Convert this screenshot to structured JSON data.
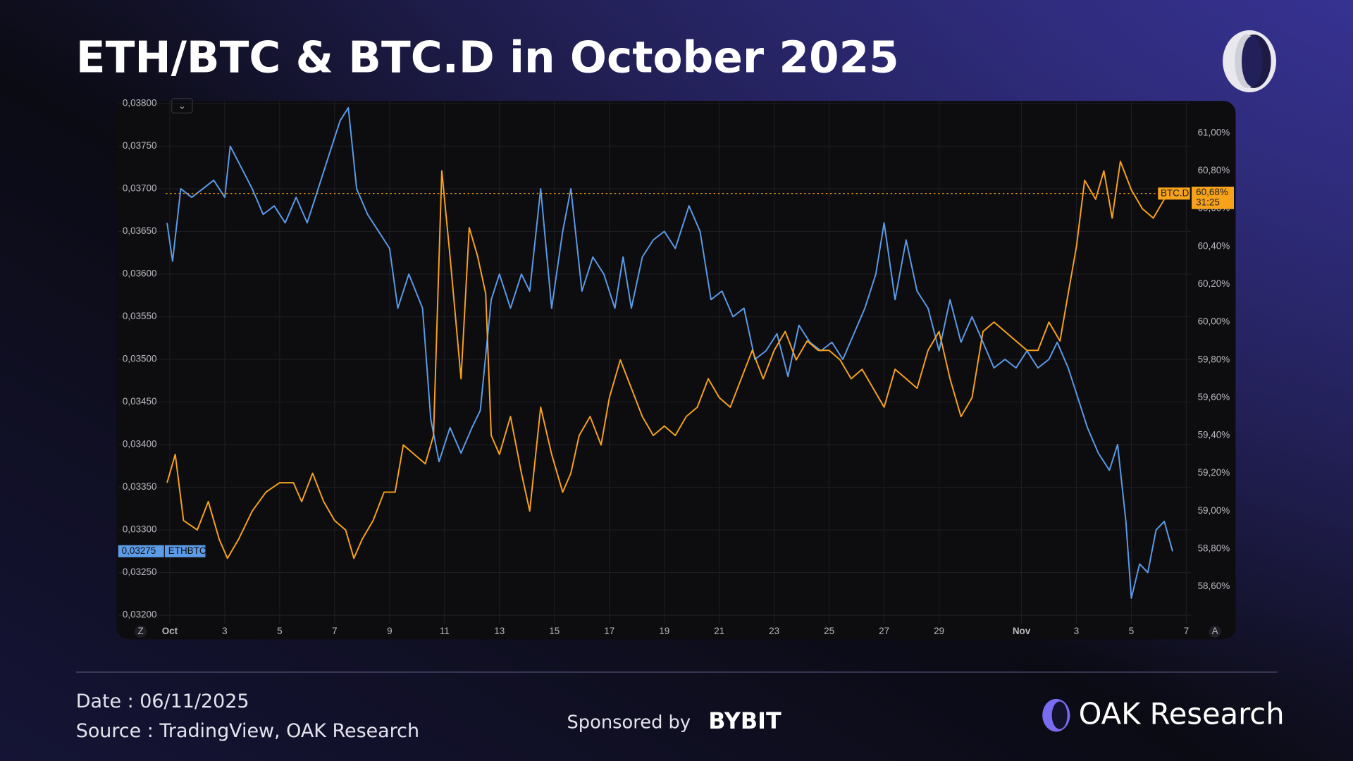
{
  "chart_data": {
    "type": "line",
    "title": "ETH/BTC & BTC.D in October 2025",
    "xlim": [
      0.85,
      38.1
    ],
    "xticks": [
      {
        "value": 1,
        "label": "Oct"
      },
      3,
      5,
      7,
      9,
      11,
      13,
      15,
      17,
      19,
      21,
      23,
      25,
      27,
      29,
      {
        "value": 32,
        "label": "Nov"
      },
      {
        "value": 34,
        "label": "3"
      },
      {
        "value": 36,
        "label": "5"
      },
      {
        "value": 38,
        "label": "7"
      }
    ],
    "ylim": [
      0.03198,
      0.03803
    ],
    "yticks": [
      {
        "value": 0.032,
        "label": "0,03200"
      },
      {
        "value": 0.0325,
        "label": "0,03250"
      },
      {
        "value": 0.033,
        "label": "0,03300"
      },
      {
        "value": 0.0335,
        "label": "0,03350"
      },
      {
        "value": 0.034,
        "label": "0,03400"
      },
      {
        "value": 0.0345,
        "label": "0,03450"
      },
      {
        "value": 0.035,
        "label": "0,03500"
      },
      {
        "value": 0.0355,
        "label": "0,03550"
      },
      {
        "value": 0.036,
        "label": "0,03600"
      },
      {
        "value": 0.0365,
        "label": "0,03650"
      },
      {
        "value": 0.037,
        "label": "0,03700"
      },
      {
        "value": 0.0375,
        "label": "0,03750"
      },
      {
        "value": 0.038,
        "label": "0,03800"
      }
    ],
    "y2lim": [
      58.44,
      61.17
    ],
    "y2ticks": [
      {
        "value": 58.6,
        "label": "58,60%"
      },
      {
        "value": 58.8,
        "label": "58,80%"
      },
      {
        "value": 59,
        "label": "59,00%"
      },
      {
        "value": 59.2,
        "label": "59,20%"
      },
      {
        "value": 59.4,
        "label": "59,40%"
      },
      {
        "value": 59.6,
        "label": "59,60%"
      },
      {
        "value": 59.8,
        "label": "59,80%"
      },
      {
        "value": 60,
        "label": "60,00%"
      },
      {
        "value": 60.2,
        "label": "60,20%"
      },
      {
        "value": 60.4,
        "label": "60,40%"
      },
      {
        "value": 60.6,
        "label": "60,60%"
      },
      {
        "value": 60.8,
        "label": "60,80%"
      },
      {
        "value": 61,
        "label": "61,00%"
      }
    ],
    "grid": true,
    "series": [
      {
        "name": "ETHBTC",
        "color": "#5b9be8",
        "axis": "y",
        "x": [
          0.9,
          1.1,
          1.4,
          1.8,
          2.2,
          2.6,
          3.0,
          3.2,
          3.6,
          4.0,
          4.4,
          4.8,
          5.2,
          5.6,
          6.0,
          6.4,
          6.8,
          7.2,
          7.5,
          7.8,
          8.2,
          8.6,
          9.0,
          9.3,
          9.7,
          10.2,
          10.5,
          10.8,
          11.2,
          11.6,
          12.0,
          12.3,
          12.7,
          13.0,
          13.4,
          13.8,
          14.1,
          14.5,
          14.9,
          15.3,
          15.6,
          16.0,
          16.4,
          16.8,
          17.2,
          17.5,
          17.8,
          18.2,
          18.6,
          19.0,
          19.4,
          19.9,
          20.3,
          20.7,
          21.1,
          21.5,
          21.9,
          22.3,
          22.7,
          23.1,
          23.5,
          23.9,
          24.3,
          24.7,
          25.1,
          25.5,
          25.9,
          26.3,
          26.7,
          27.0,
          27.4,
          27.8,
          28.2,
          28.6,
          29.0,
          29.4,
          29.8,
          30.2,
          30.6,
          31.0,
          31.4,
          31.8,
          32.2,
          32.6,
          33.0,
          33.3,
          33.7,
          34.0,
          34.4,
          34.8,
          35.2,
          35.5,
          35.8,
          36.0,
          36.3,
          36.6,
          36.9,
          37.2,
          37.5
        ],
        "values": [
          0.0366,
          0.03615,
          0.037,
          0.0369,
          0.037,
          0.0371,
          0.0369,
          0.0375,
          0.03725,
          0.037,
          0.0367,
          0.0368,
          0.0366,
          0.0369,
          0.0366,
          0.037,
          0.0374,
          0.0378,
          0.03795,
          0.037,
          0.0367,
          0.0365,
          0.0363,
          0.0356,
          0.036,
          0.0356,
          0.0343,
          0.0338,
          0.0342,
          0.0339,
          0.0342,
          0.0344,
          0.0357,
          0.036,
          0.0356,
          0.036,
          0.0358,
          0.037,
          0.0356,
          0.0365,
          0.037,
          0.0358,
          0.0362,
          0.036,
          0.0356,
          0.0362,
          0.0356,
          0.0362,
          0.0364,
          0.0365,
          0.0363,
          0.0368,
          0.0365,
          0.0357,
          0.0358,
          0.0355,
          0.0356,
          0.035,
          0.0351,
          0.0353,
          0.0348,
          0.0354,
          0.0352,
          0.0351,
          0.0352,
          0.035,
          0.0353,
          0.0356,
          0.036,
          0.0366,
          0.0357,
          0.0364,
          0.0358,
          0.0356,
          0.0351,
          0.0357,
          0.0352,
          0.0355,
          0.0352,
          0.0349,
          0.035,
          0.0349,
          0.0351,
          0.0349,
          0.035,
          0.0352,
          0.0349,
          0.0346,
          0.0342,
          0.0339,
          0.0337,
          0.034,
          0.0331,
          0.0322,
          0.0326,
          0.0325,
          0.033,
          0.0331,
          0.03275
        ],
        "value_labels": [
          null,
          null,
          null,
          null,
          null,
          null,
          null,
          null,
          null,
          null,
          null,
          null,
          null,
          null,
          null,
          null,
          null,
          null,
          null,
          null,
          null,
          null,
          null,
          null,
          null,
          null,
          null,
          null,
          null,
          null,
          null,
          null,
          null,
          null,
          null,
          null,
          null,
          null,
          null,
          null,
          null,
          null,
          null,
          null,
          null,
          null,
          null,
          null,
          null,
          null,
          null,
          null,
          null,
          null,
          null,
          null,
          null,
          null,
          null,
          null,
          null,
          null,
          null,
          null,
          null,
          null,
          null,
          null,
          null,
          null,
          null,
          null,
          null,
          null,
          null,
          null,
          null,
          null,
          null,
          null,
          null,
          null,
          null,
          null,
          null,
          null,
          null,
          null,
          null,
          null,
          null,
          null,
          null,
          null,
          null,
          null,
          null,
          null,
          "0,03275"
        ]
      },
      {
        "name": "BTC.D",
        "color": "#f7a21b",
        "axis": "y2",
        "countdown": "31:25",
        "x": [
          0.9,
          1.2,
          1.5,
          2.0,
          2.4,
          2.8,
          3.1,
          3.5,
          4.0,
          4.5,
          5.0,
          5.5,
          5.8,
          6.2,
          6.6,
          7.0,
          7.4,
          7.7,
          8.0,
          8.4,
          8.8,
          9.2,
          9.5,
          9.9,
          10.3,
          10.6,
          10.9,
          11.2,
          11.6,
          11.9,
          12.2,
          12.5,
          12.7,
          13.0,
          13.4,
          13.8,
          14.1,
          14.5,
          14.9,
          15.3,
          15.6,
          15.9,
          16.3,
          16.7,
          17.0,
          17.4,
          17.8,
          18.2,
          18.6,
          19.0,
          19.4,
          19.8,
          20.2,
          20.6,
          21.0,
          21.4,
          21.8,
          22.2,
          22.6,
          23.0,
          23.4,
          23.8,
          24.2,
          24.6,
          25.0,
          25.4,
          25.8,
          26.2,
          26.6,
          27.0,
          27.4,
          27.8,
          28.2,
          28.6,
          29.0,
          29.4,
          29.8,
          30.2,
          30.6,
          31.0,
          31.4,
          31.8,
          32.2,
          32.6,
          33.0,
          33.4,
          33.7,
          34.0,
          34.3,
          34.7,
          35.0,
          35.3,
          35.6,
          36.0,
          36.4,
          36.8,
          37.2,
          37.5
        ],
        "values": [
          59.15,
          59.3,
          58.95,
          58.9,
          59.05,
          58.85,
          58.75,
          58.85,
          59.0,
          59.1,
          59.15,
          59.15,
          59.05,
          59.2,
          59.05,
          58.95,
          58.9,
          58.75,
          58.85,
          58.95,
          59.1,
          59.1,
          59.35,
          59.3,
          59.25,
          59.4,
          60.8,
          60.35,
          59.7,
          60.5,
          60.35,
          60.15,
          59.4,
          59.3,
          59.5,
          59.2,
          59.0,
          59.55,
          59.3,
          59.1,
          59.2,
          59.4,
          59.5,
          59.35,
          59.6,
          59.8,
          59.65,
          59.5,
          59.4,
          59.45,
          59.4,
          59.5,
          59.55,
          59.7,
          59.6,
          59.55,
          59.7,
          59.85,
          59.7,
          59.85,
          59.95,
          59.8,
          59.9,
          59.85,
          59.85,
          59.8,
          59.7,
          59.75,
          59.65,
          59.55,
          59.75,
          59.7,
          59.65,
          59.85,
          59.95,
          59.7,
          59.5,
          59.6,
          59.95,
          60.0,
          59.95,
          59.9,
          59.85,
          59.85,
          60.0,
          59.9,
          60.15,
          60.4,
          60.75,
          60.65,
          60.8,
          60.55,
          60.85,
          60.7,
          60.6,
          60.55,
          60.65,
          60.68
        ],
        "value_labels": [
          null,
          null,
          null,
          null,
          null,
          null,
          null,
          null,
          null,
          null,
          null,
          null,
          null,
          null,
          null,
          null,
          null,
          null,
          null,
          null,
          null,
          null,
          null,
          null,
          null,
          null,
          null,
          null,
          null,
          null,
          null,
          null,
          null,
          null,
          null,
          null,
          null,
          null,
          null,
          null,
          null,
          null,
          null,
          null,
          null,
          null,
          null,
          null,
          null,
          null,
          null,
          null,
          null,
          null,
          null,
          null,
          null,
          null,
          null,
          null,
          null,
          null,
          null,
          null,
          null,
          null,
          null,
          null,
          null,
          null,
          null,
          null,
          null,
          null,
          null,
          null,
          null,
          null,
          null,
          null,
          null,
          null,
          null,
          null,
          null,
          null,
          null,
          null,
          null,
          null,
          null,
          null,
          null,
          null,
          null,
          null,
          null,
          "60,68%"
        ]
      }
    ]
  },
  "footer": {
    "date": "Date : 06/11/2025",
    "source": "Source : TradingView, OAK Research",
    "sponsor": "Sponsored by",
    "sponsor_brand": "BYBIT",
    "brand": "OAK Research"
  }
}
